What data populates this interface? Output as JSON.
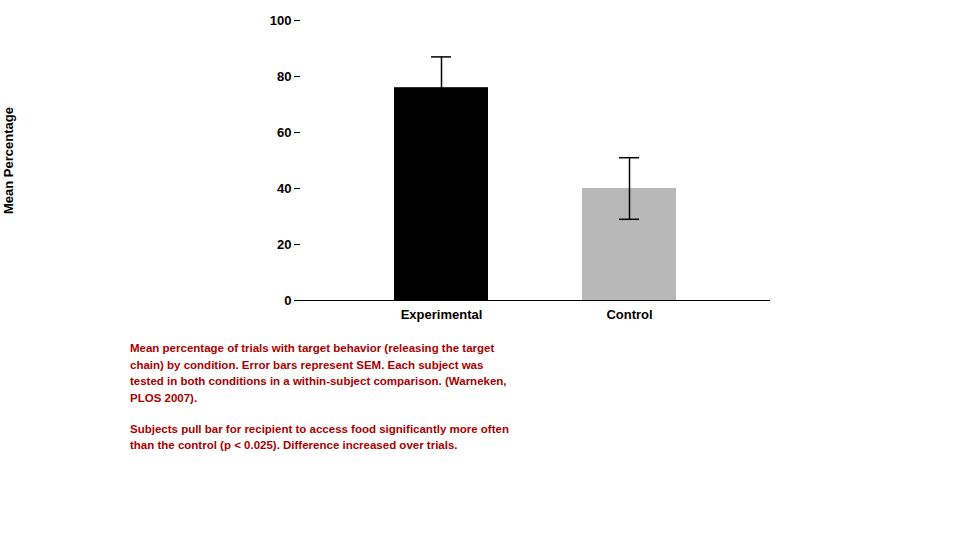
{
  "chart_data": {
    "type": "bar",
    "categories": [
      "Experimental",
      "Control"
    ],
    "values": [
      76,
      40
    ],
    "errors": [
      11,
      11
    ],
    "colors": [
      "#000000",
      "#b8b8b8"
    ],
    "ylabel": "Mean Percentage",
    "ylim": [
      0,
      100
    ],
    "yticks": [
      0,
      20,
      40,
      60,
      80,
      100
    ],
    "grid": false,
    "annotations": [
      {
        "text": "Mean percentage of trials with target behavior (releasing the target\nchain) by condition. Error bars represent SEM. Each subject was\ntested in both conditions in a within-subject comparison. (Warneken,\nPLOS 2007).",
        "color": "#aa0000"
      },
      {
        "text": "Subjects pull bar for recipient to access food significantly more often\nthan the control (p < 0.025).  Difference increased over trials.",
        "color": "#aa0000"
      }
    ]
  }
}
